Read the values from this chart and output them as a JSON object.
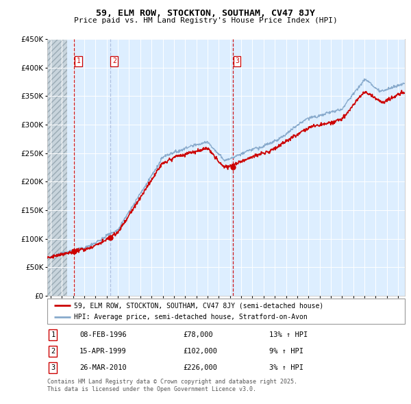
{
  "title": "59, ELM ROW, STOCKTON, SOUTHAM, CV47 8JY",
  "subtitle": "Price paid vs. HM Land Registry's House Price Index (HPI)",
  "legend_property": "59, ELM ROW, STOCKTON, SOUTHAM, CV47 8JY (semi-detached house)",
  "legend_hpi": "HPI: Average price, semi-detached house, Stratford-on-Avon",
  "transactions": [
    {
      "num": 1,
      "date": "08-FEB-1996",
      "price": 78000,
      "hpi_rel": "13% ↑ HPI",
      "year": 1996.1,
      "line_color": "#cc0000"
    },
    {
      "num": 2,
      "date": "15-APR-1999",
      "price": 102000,
      "hpi_rel": "9% ↑ HPI",
      "year": 1999.3,
      "line_color": "#aabbdd"
    },
    {
      "num": 3,
      "date": "26-MAR-2010",
      "price": 226000,
      "hpi_rel": "3% ↑ HPI",
      "year": 2010.25,
      "line_color": "#cc0000"
    }
  ],
  "footer": "Contains HM Land Registry data © Crown copyright and database right 2025.\nThis data is licensed under the Open Government Licence v3.0.",
  "property_color": "#cc0000",
  "hpi_color": "#88aacc",
  "background_plot": "#ddeeff",
  "ylim": [
    0,
    450000
  ],
  "xlim_start": 1993.7,
  "xlim_end": 2025.6,
  "hatch_end": 1995.5
}
